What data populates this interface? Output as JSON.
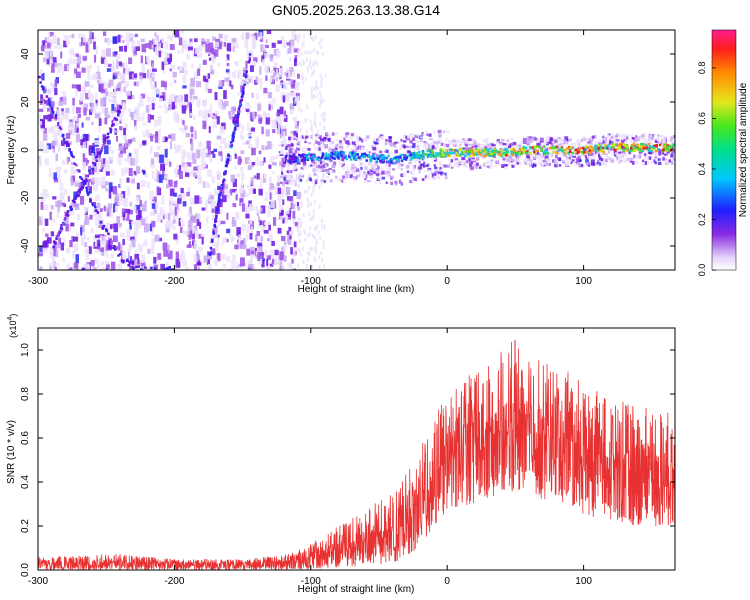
{
  "title": "GN05.2025.263.13.38.G14",
  "colors": {
    "snr_line": "#e83232",
    "spectro_violet": "#7a1ee6",
    "spectro_light": "#d9c4f5",
    "ridge_hot": "#e61e1e",
    "ridge_mid": "#33cc33",
    "ridge_cold": "#19b4e6"
  },
  "chart_data": [
    {
      "type": "heatmap",
      "title": "GN05.2025.263.13.38.G14",
      "xlabel": "Height of straight line (km)",
      "ylabel": "Frequency (Hz)",
      "xlim": [
        -300,
        167
      ],
      "ylim": [
        -50,
        50
      ],
      "xticks": [
        -300,
        -200,
        -100,
        0,
        100
      ],
      "yticks": [
        -40,
        -20,
        0,
        20,
        40
      ],
      "grid": false,
      "colorbar": {
        "label": "Normalized spectral amplitude",
        "range": [
          0,
          0.95
        ],
        "ticks": [
          0.0,
          0.2,
          0.4,
          0.6,
          0.8
        ],
        "tick_labels": [
          "0.0",
          "0.2",
          "0.4",
          "0.6",
          "0.8"
        ],
        "colormap": "rainbow (white-violet-blue-cyan-green-yellow-red-magenta)"
      },
      "ridges": [
        {
          "x": [
            -300,
            -285,
            -270,
            -255,
            -240,
            -225,
            -210,
            -200
          ],
          "y": [
            30,
            10,
            -10,
            -30,
            -45,
            -50,
            -50,
            -50
          ],
          "amplitude": 0.35,
          "note": "diagonal streak"
        },
        {
          "x": [
            -290,
            -275,
            -262,
            -250,
            -240
          ],
          "y": [
            -40,
            -22,
            -8,
            5,
            18
          ],
          "amplitude": 0.3
        },
        {
          "x": [
            -175,
            -168,
            -160,
            -152,
            -145
          ],
          "y": [
            -45,
            -20,
            0,
            20,
            40
          ],
          "amplitude": 0.35
        },
        {
          "x": [
            -120,
            -100,
            -80,
            -60,
            -40,
            -20,
            0,
            20,
            40,
            60,
            80,
            100,
            120,
            140,
            167
          ],
          "y": [
            -4,
            -3,
            -2,
            -3,
            -4,
            -2,
            -1,
            -1,
            -1,
            0,
            0,
            0,
            1,
            1,
            1
          ],
          "amplitude": [
            0.3,
            0.45,
            0.5,
            0.5,
            0.45,
            0.6,
            0.75,
            0.8,
            0.8,
            0.85,
            0.85,
            0.9,
            0.9,
            0.9,
            0.9
          ]
        }
      ]
    },
    {
      "type": "line",
      "xlabel": "Height of straight line (km)",
      "ylabel": "SNR (10 * v/v)",
      "yscale_label": "(x10",
      "yscale_exp": "4",
      "yscale_suffix": ")",
      "xlim": [
        -300,
        167
      ],
      "ylim": [
        0,
        1.1
      ],
      "xticks": [
        -300,
        -200,
        -100,
        0,
        100
      ],
      "yticks": [
        0.0,
        0.2,
        0.4,
        0.6,
        0.8,
        1.0
      ],
      "ytick_labels": [
        "0.0",
        "0.2",
        "0.4",
        "0.6",
        "0.8",
        "1.0"
      ],
      "grid": false,
      "series": [
        {
          "envelope_x": [
            -300,
            -250,
            -200,
            -150,
            -120,
            -100,
            -80,
            -60,
            -40,
            -20,
            -10,
            0,
            20,
            40,
            55,
            70,
            90,
            100,
            120,
            140,
            167
          ],
          "envelope_low": [
            0.0,
            0.0,
            0.0,
            0.0,
            0.0,
            0.0,
            0.01,
            0.02,
            0.03,
            0.1,
            0.2,
            0.25,
            0.3,
            0.35,
            0.35,
            0.32,
            0.3,
            0.25,
            0.22,
            0.2,
            0.2
          ],
          "envelope_high": [
            0.06,
            0.08,
            0.05,
            0.05,
            0.07,
            0.12,
            0.2,
            0.28,
            0.35,
            0.55,
            0.7,
            0.8,
            0.95,
            1.0,
            1.08,
            0.95,
            0.9,
            0.85,
            0.78,
            0.75,
            0.72
          ],
          "mean": [
            0.03,
            0.035,
            0.03,
            0.03,
            0.04,
            0.06,
            0.09,
            0.13,
            0.18,
            0.3,
            0.42,
            0.5,
            0.6,
            0.62,
            0.65,
            0.6,
            0.58,
            0.55,
            0.5,
            0.48,
            0.45
          ]
        }
      ]
    }
  ]
}
